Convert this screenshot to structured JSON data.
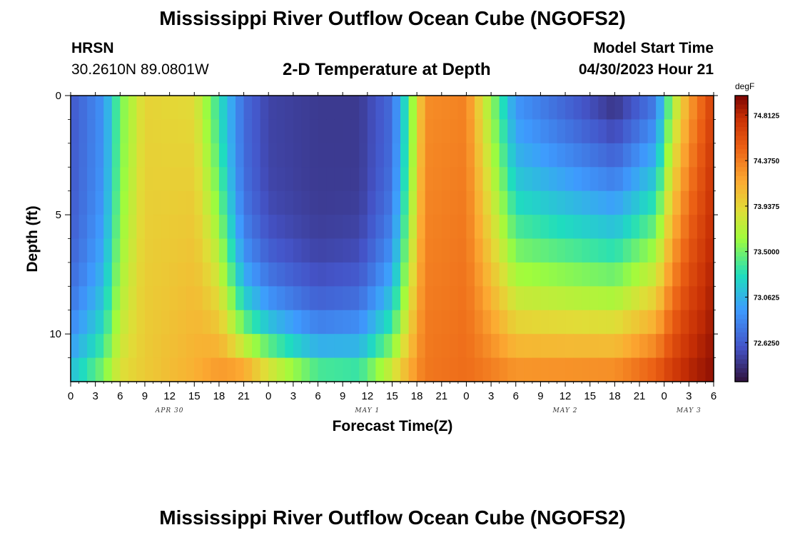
{
  "header": {
    "title": "Mississippi River Outflow Ocean Cube (NGOFS2)",
    "station_name": "HRSN",
    "station_coords": "30.2610N  89.0801W",
    "subtitle": "2-D Temperature at Depth",
    "model_start_label": "Model Start Time",
    "model_start_value": "04/30/2023 Hour 21"
  },
  "footer": {
    "title": "Mississippi River Outflow Ocean Cube (NGOFS2)"
  },
  "chart_data": {
    "type": "heatmap",
    "title": "2-D Temperature at Depth",
    "xlabel": "Forecast Time(Z)",
    "ylabel": "Depth (ft)",
    "units": "degF",
    "x_tick_labels": [
      "0",
      "3",
      "6",
      "9",
      "12",
      "15",
      "18",
      "21",
      "0",
      "3",
      "6",
      "9",
      "12",
      "15",
      "18",
      "21",
      "0",
      "3",
      "6",
      "9",
      "12",
      "15",
      "18",
      "21",
      "0",
      "3",
      "6"
    ],
    "x_hours": [
      0,
      3,
      6,
      9,
      12,
      15,
      18,
      21,
      24,
      27,
      30,
      33,
      36,
      39,
      42,
      45,
      48,
      51,
      54,
      57,
      60,
      63,
      66,
      69,
      72,
      75,
      78
    ],
    "x_range_hours": [
      0,
      78
    ],
    "day_labels": [
      {
        "label": "APR 30",
        "hour": 12
      },
      {
        "label": "MAY 1",
        "hour": 36
      },
      {
        "label": "MAY 2",
        "hour": 60
      },
      {
        "label": "MAY 3",
        "hour": 75
      }
    ],
    "y_range_ft": [
      0,
      12
    ],
    "y_tick_labels": [
      "0",
      "5",
      "10"
    ],
    "y_tick_values": [
      0,
      5,
      10
    ],
    "depth_layers_ft": [
      0,
      1,
      2,
      3,
      4,
      5,
      6,
      7,
      8,
      9,
      10,
      11,
      12
    ],
    "colorbar": {
      "min": 72.25,
      "max": 75.0,
      "tick_labels": [
        "74.8125",
        "74.3750",
        "73.9375",
        "73.5000",
        "73.0625",
        "72.6250"
      ],
      "tick_values": [
        74.8125,
        74.375,
        73.9375,
        73.5,
        73.0625,
        72.625
      ]
    },
    "field_keyframes": [
      {
        "hour": 0,
        "surface": 72.6,
        "bottom": 73.2,
        "shape": 4.0
      },
      {
        "hour": 4,
        "surface": 72.9,
        "bottom": 73.6,
        "shape": 3.0
      },
      {
        "hour": 6,
        "surface": 73.5,
        "bottom": 73.9,
        "shape": 2.0
      },
      {
        "hour": 9,
        "surface": 73.95,
        "bottom": 74.0,
        "shape": 1.0
      },
      {
        "hour": 15,
        "surface": 73.9,
        "bottom": 74.15,
        "shape": 1.0
      },
      {
        "hour": 18,
        "surface": 73.3,
        "bottom": 74.3,
        "shape": 1.5
      },
      {
        "hour": 21,
        "surface": 72.7,
        "bottom": 74.4,
        "shape": 3.5
      },
      {
        "hour": 24,
        "surface": 72.5,
        "bottom": 74.1,
        "shape": 4.0
      },
      {
        "hour": 30,
        "surface": 72.45,
        "bottom": 73.6,
        "shape": 5.0
      },
      {
        "hour": 35,
        "surface": 72.45,
        "bottom": 73.5,
        "shape": 4.0
      },
      {
        "hour": 39,
        "surface": 72.7,
        "bottom": 73.95,
        "shape": 3.0
      },
      {
        "hour": 41,
        "surface": 73.4,
        "bottom": 74.2,
        "shape": 2.0
      },
      {
        "hour": 43,
        "surface": 74.3,
        "bottom": 74.4,
        "shape": 1.0
      },
      {
        "hour": 48,
        "surface": 74.35,
        "bottom": 74.45,
        "shape": 1.0
      },
      {
        "hour": 51,
        "surface": 73.6,
        "bottom": 74.4,
        "shape": 1.2
      },
      {
        "hour": 54,
        "surface": 72.9,
        "bottom": 74.35,
        "shape": 1.4
      },
      {
        "hour": 66,
        "surface": 72.4,
        "bottom": 74.4,
        "shape": 1.3
      },
      {
        "hour": 71,
        "surface": 72.75,
        "bottom": 74.6,
        "shape": 1.2
      },
      {
        "hour": 73,
        "surface": 73.6,
        "bottom": 74.75,
        "shape": 1.0
      },
      {
        "hour": 75,
        "surface": 74.2,
        "bottom": 74.85,
        "shape": 1.0
      },
      {
        "hour": 78,
        "surface": 74.7,
        "bottom": 74.95,
        "shape": 1.0
      }
    ]
  }
}
